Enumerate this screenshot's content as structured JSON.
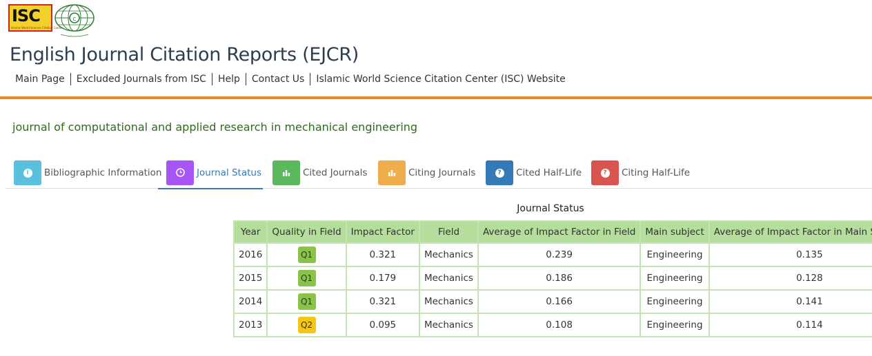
{
  "logo": {
    "isc_text": "ISC",
    "isc_subtext": "Islamic World Science Citation Center",
    "emblem_name": "isc-emblem-icon"
  },
  "header": {
    "title": "English Journal Citation Reports (EJCR)"
  },
  "topnav": [
    "Main Page",
    "Excluded Journals from ISC",
    "Help",
    "Contact Us",
    "Islamic World Science Citation Center (ISC) Website"
  ],
  "journal": {
    "name": "journal of computational and applied research in mechanical engineering"
  },
  "tabs": [
    {
      "label": "Bibliographic Information",
      "icon": "info-icon",
      "color": "#5bc0de",
      "glyph": "i"
    },
    {
      "label": "Journal Status",
      "icon": "clock-icon",
      "color": "#a855f7",
      "glyph": "◷",
      "active": true
    },
    {
      "label": "Cited Journals",
      "icon": "bar-chart-icon",
      "color": "#5cb85c",
      "glyph": "▐"
    },
    {
      "label": "Citing Journals",
      "icon": "bar-chart-icon",
      "color": "#f0ad4e",
      "glyph": "▐"
    },
    {
      "label": "Cited Half-Life",
      "icon": "question-icon",
      "color": "#337ab7",
      "glyph": "?"
    },
    {
      "label": "Citing Half-Life",
      "icon": "question-icon",
      "color": "#d9534f",
      "glyph": "?"
    }
  ],
  "status_table": {
    "caption": "Journal Status",
    "headers": [
      "Year",
      "Quality in Field",
      "Impact Factor",
      "Field",
      "Average of Impact Factor in Field",
      "Main subject",
      "Average of Impact Factor in Main Subject"
    ],
    "rows": [
      {
        "year": "2016",
        "quality": "Q1",
        "impact": "0.321",
        "field": "Mechanics",
        "avg_field": "0.239",
        "subject": "Engineering",
        "avg_subject": "0.135"
      },
      {
        "year": "2015",
        "quality": "Q1",
        "impact": "0.179",
        "field": "Mechanics",
        "avg_field": "0.186",
        "subject": "Engineering",
        "avg_subject": "0.128"
      },
      {
        "year": "2014",
        "quality": "Q1",
        "impact": "0.321",
        "field": "Mechanics",
        "avg_field": "0.166",
        "subject": "Engineering",
        "avg_subject": "0.141"
      },
      {
        "year": "2013",
        "quality": "Q2",
        "impact": "0.095",
        "field": "Mechanics",
        "avg_field": "0.108",
        "subject": "Engineering",
        "avg_subject": "0.114"
      }
    ],
    "quality_colors": {
      "Q1": "#8bc34a",
      "Q2": "#f5c518"
    }
  },
  "colors": {
    "accent_orange": "#f0861e",
    "title_color": "#2b3e50",
    "journal_green": "#2e6b1e",
    "table_header_bg": "#b5dd9b"
  }
}
